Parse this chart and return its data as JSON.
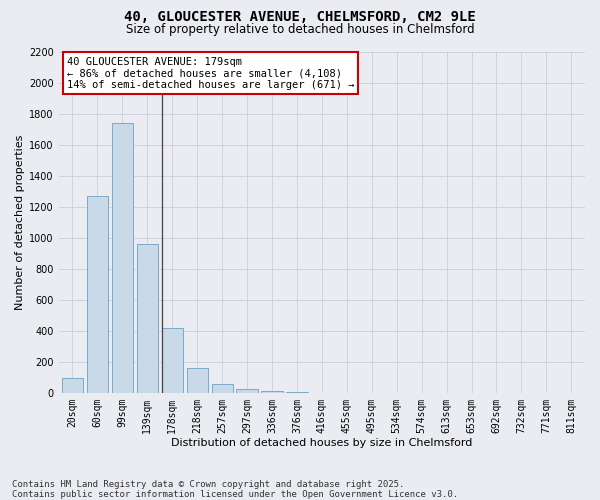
{
  "title_line1": "40, GLOUCESTER AVENUE, CHELMSFORD, CM2 9LE",
  "title_line2": "Size of property relative to detached houses in Chelmsford",
  "xlabel": "Distribution of detached houses by size in Chelmsford",
  "ylabel": "Number of detached properties",
  "categories": [
    "20sqm",
    "60sqm",
    "99sqm",
    "139sqm",
    "178sqm",
    "218sqm",
    "257sqm",
    "297sqm",
    "336sqm",
    "376sqm",
    "416sqm",
    "455sqm",
    "495sqm",
    "534sqm",
    "574sqm",
    "613sqm",
    "653sqm",
    "692sqm",
    "732sqm",
    "771sqm",
    "811sqm"
  ],
  "values": [
    100,
    1270,
    1740,
    960,
    420,
    160,
    60,
    30,
    15,
    5,
    2,
    0,
    0,
    0,
    0,
    0,
    0,
    0,
    0,
    0,
    0
  ],
  "bar_color": "#c9d9e8",
  "bar_edgecolor": "#7aaac8",
  "highlight_bar_index": 4,
  "annotation_text": "40 GLOUCESTER AVENUE: 179sqm\n← 86% of detached houses are smaller (4,108)\n14% of semi-detached houses are larger (671) →",
  "annotation_box_color": "#ffffff",
  "annotation_box_edgecolor": "#cc0000",
  "ylim_max": 2200,
  "yticks": [
    0,
    200,
    400,
    600,
    800,
    1000,
    1200,
    1400,
    1600,
    1800,
    2000,
    2200
  ],
  "grid_color": "#c8d0dc",
  "bg_color": "#eaecf2",
  "footnote": "Contains HM Land Registry data © Crown copyright and database right 2025.\nContains public sector information licensed under the Open Government Licence v3.0.",
  "title_fontsize": 10,
  "subtitle_fontsize": 8.5,
  "axis_label_fontsize": 8,
  "tick_fontsize": 7,
  "annotation_fontsize": 7.5,
  "footnote_fontsize": 6.5
}
